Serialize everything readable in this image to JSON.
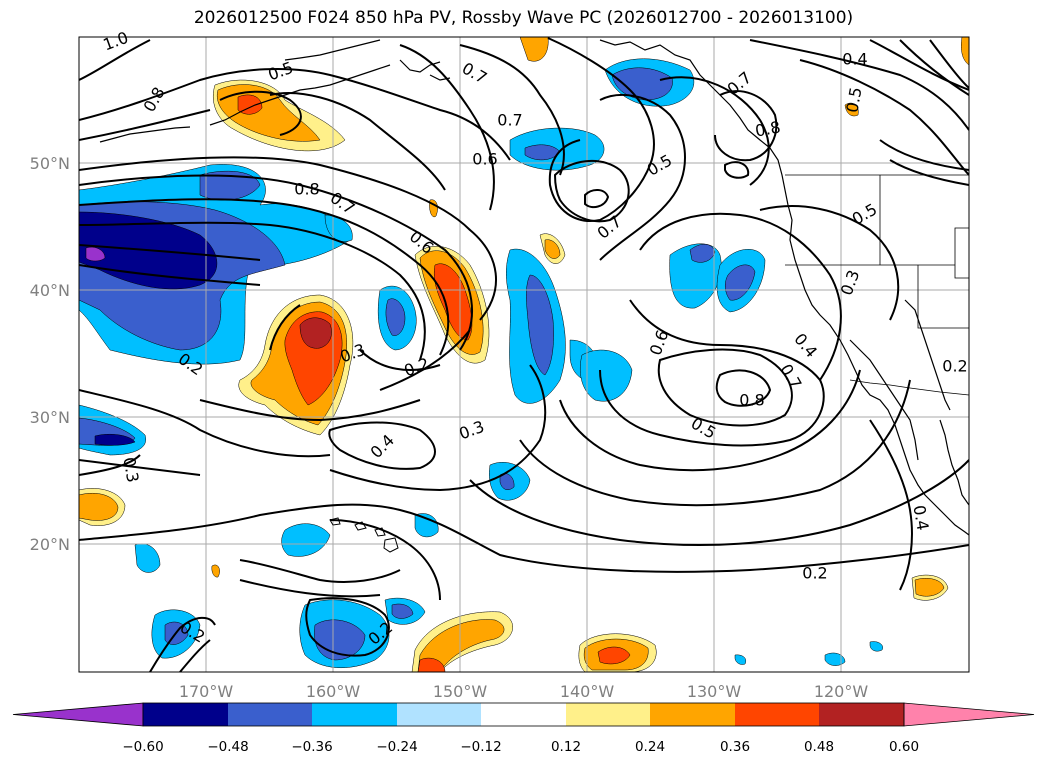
{
  "title": "2026012500 F024 850 hPa PV, Rossby Wave PC (2026012700 - 2026013100)",
  "axes": {
    "lon_ticks": [
      "170°W",
      "160°W",
      "150°W",
      "140°W",
      "130°W",
      "120°W"
    ],
    "lat_ticks": [
      "50°N",
      "40°N",
      "30°N",
      "20°N"
    ]
  },
  "colorbar": {
    "tick_labels": [
      "−0.60",
      "−0.48",
      "−0.36",
      "−0.24",
      "−0.12",
      "0.12",
      "0.24",
      "0.36",
      "0.48",
      "0.60"
    ],
    "colors": [
      "#9932cc",
      "#00008b",
      "#3a5fcd",
      "#00bfff",
      "#b0e2ff",
      "#ffffff",
      "#fff08a",
      "#ffa500",
      "#ff4500",
      "#b22222",
      "#ff82ab"
    ]
  },
  "contour_labels": [
    {
      "text": "1.0"
    },
    {
      "text": "0.5"
    },
    {
      "text": "0.8"
    },
    {
      "text": "0.7"
    },
    {
      "text": "0.7"
    },
    {
      "text": "0.6"
    },
    {
      "text": "0.5"
    },
    {
      "text": "0.7"
    },
    {
      "text": "0.8"
    },
    {
      "text": "0.4"
    },
    {
      "text": "0.5"
    },
    {
      "text": "0.8"
    },
    {
      "text": "0.7"
    },
    {
      "text": "0.6"
    },
    {
      "text": "0.7"
    },
    {
      "text": "0.5"
    },
    {
      "text": "0.3"
    },
    {
      "text": "0.2"
    },
    {
      "text": "0.3"
    },
    {
      "text": "0.2"
    },
    {
      "text": "0.6"
    },
    {
      "text": "0.4"
    },
    {
      "text": "0.7"
    },
    {
      "text": "0.8"
    },
    {
      "text": "0.5"
    },
    {
      "text": "0.2"
    },
    {
      "text": "0.4"
    },
    {
      "text": "0.3"
    },
    {
      "text": "0.3"
    },
    {
      "text": "0.4"
    },
    {
      "text": "0.2"
    },
    {
      "text": "0.2"
    },
    {
      "text": "0.2"
    }
  ]
}
